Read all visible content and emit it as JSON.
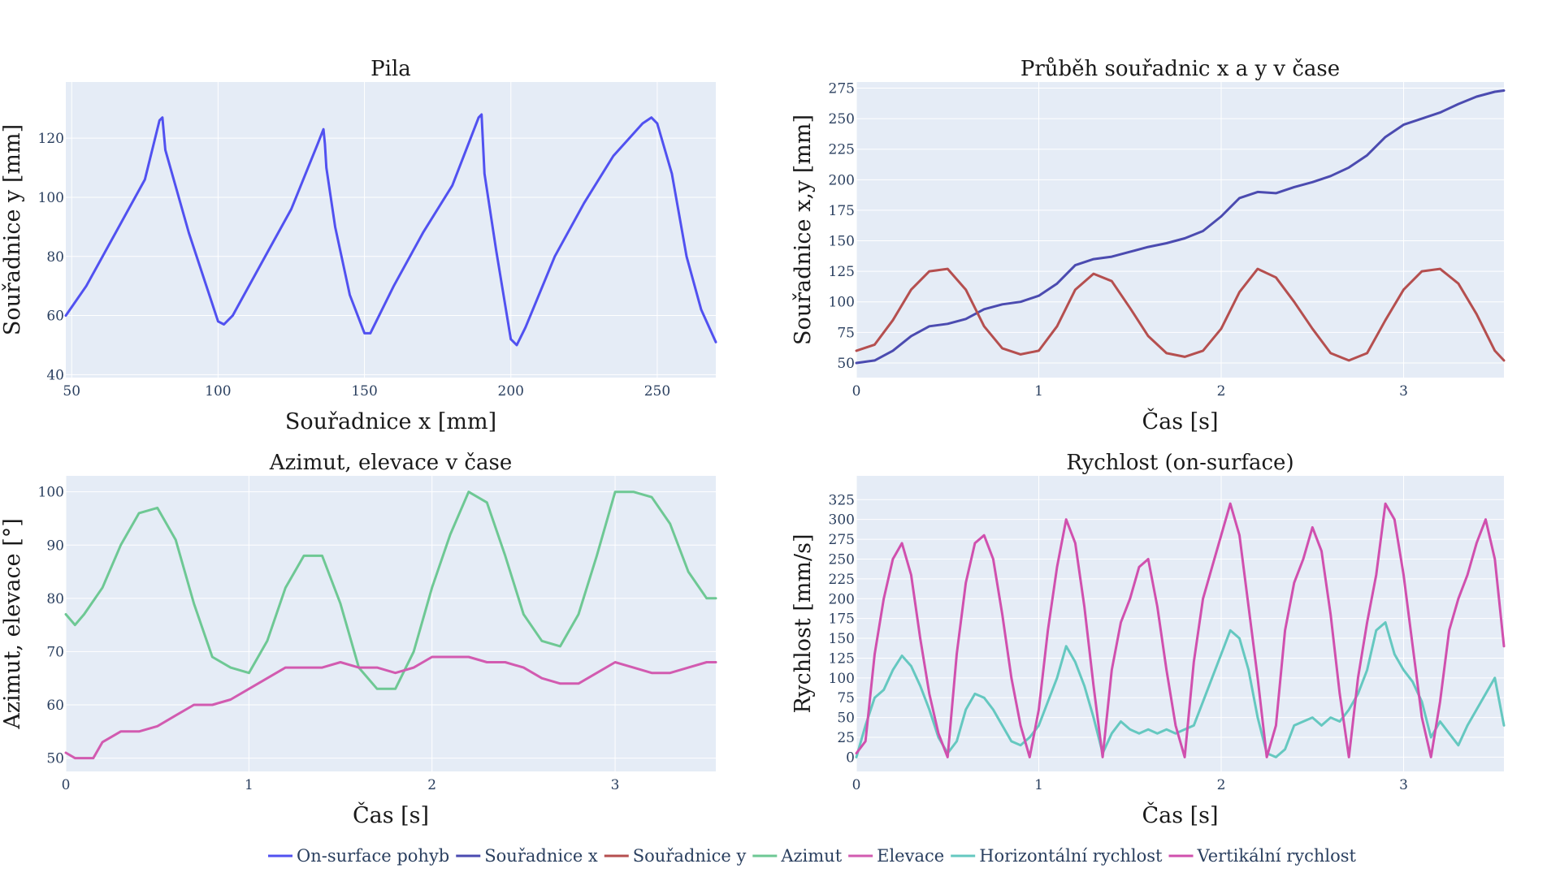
{
  "legend": [
    {
      "name": "On-surface pohyb",
      "color": "#5151f0"
    },
    {
      "name": "Souřadnice x",
      "color": "#4b4bb0"
    },
    {
      "name": "Souřadnice y",
      "color": "#b54f4f"
    },
    {
      "name": "Azimut",
      "color": "#6ec894"
    },
    {
      "name": "Elevace",
      "color": "#d25bb0"
    },
    {
      "name": "Horizontální rychlost",
      "color": "#65c8c0"
    },
    {
      "name": "Vertikální rychlost",
      "color": "#d050ae"
    }
  ],
  "chart_data": [
    {
      "type": "line",
      "title": "Pila",
      "xlabel": "Souřadnice x [mm]",
      "ylabel": "Souřadnice y [mm]",
      "xlim": [
        48,
        270
      ],
      "ylim": [
        39,
        139
      ],
      "xticks": [
        50,
        100,
        150,
        200,
        250
      ],
      "yticks": [
        40,
        60,
        80,
        100,
        120
      ],
      "plot_bg": "#e5ecf6",
      "series": [
        {
          "legend": "On-surface pohyb",
          "color": "#5151f0",
          "x": [
            48,
            55,
            65,
            75,
            80,
            81,
            82,
            90,
            100,
            102,
            105,
            115,
            125,
            134,
            136,
            136.5,
            137,
            140,
            145,
            150,
            152,
            160,
            170,
            180,
            189,
            190,
            190.5,
            191,
            195,
            200,
            202,
            205,
            215,
            225,
            235,
            245,
            248,
            250,
            255,
            260,
            265,
            270
          ],
          "y": [
            60,
            70,
            88,
            106,
            126,
            127,
            116,
            88,
            58,
            57,
            60,
            78,
            96,
            118,
            123,
            118,
            110,
            90,
            67,
            54,
            54,
            70,
            88,
            104,
            127,
            128,
            118,
            108,
            82,
            52,
            50,
            56,
            80,
            98,
            114,
            125,
            127,
            125,
            108,
            80,
            62,
            51
          ]
        }
      ]
    },
    {
      "type": "line",
      "title": "Průběh souřadnic x a y v čase",
      "xlabel": "Čas [s]",
      "ylabel": "Souřadnice x,y [mm]",
      "xlim": [
        0,
        3.55
      ],
      "ylim": [
        38,
        280
      ],
      "xticks": [
        0,
        1,
        2,
        3
      ],
      "yticks": [
        50,
        75,
        100,
        125,
        150,
        175,
        200,
        225,
        250,
        275
      ],
      "plot_bg": "#e5ecf6",
      "series": [
        {
          "legend": "Souřadnice x",
          "color": "#4b4bb0",
          "x": [
            0,
            0.1,
            0.2,
            0.3,
            0.4,
            0.5,
            0.6,
            0.7,
            0.8,
            0.9,
            1.0,
            1.1,
            1.2,
            1.3,
            1.4,
            1.5,
            1.6,
            1.7,
            1.8,
            1.9,
            2.0,
            2.1,
            2.2,
            2.3,
            2.4,
            2.5,
            2.6,
            2.7,
            2.8,
            2.9,
            3.0,
            3.1,
            3.2,
            3.3,
            3.4,
            3.5,
            3.55
          ],
          "y": [
            50,
            52,
            60,
            72,
            80,
            82,
            86,
            94,
            98,
            100,
            105,
            115,
            130,
            135,
            137,
            141,
            145,
            148,
            152,
            158,
            170,
            185,
            190,
            189,
            194,
            198,
            203,
            210,
            220,
            235,
            245,
            250,
            255,
            262,
            268,
            272,
            273
          ]
        },
        {
          "legend": "Souřadnice y",
          "color": "#b54f4f",
          "x": [
            0,
            0.1,
            0.2,
            0.3,
            0.4,
            0.5,
            0.6,
            0.7,
            0.8,
            0.9,
            1.0,
            1.1,
            1.2,
            1.3,
            1.4,
            1.5,
            1.6,
            1.7,
            1.8,
            1.9,
            2.0,
            2.1,
            2.2,
            2.3,
            2.4,
            2.5,
            2.6,
            2.7,
            2.8,
            2.9,
            3.0,
            3.1,
            3.2,
            3.3,
            3.4,
            3.5,
            3.55
          ],
          "y": [
            60,
            65,
            85,
            110,
            125,
            127,
            110,
            80,
            62,
            57,
            60,
            80,
            110,
            123,
            117,
            95,
            72,
            58,
            55,
            60,
            78,
            108,
            127,
            120,
            100,
            78,
            58,
            52,
            58,
            85,
            110,
            125,
            127,
            115,
            90,
            60,
            52
          ]
        }
      ]
    },
    {
      "type": "line",
      "title": "Azimut, elevace v čase",
      "xlabel": "Čas [s]",
      "ylabel": "Azimut, elevace [°]",
      "xlim": [
        0,
        3.55
      ],
      "ylim": [
        47.5,
        103
      ],
      "xticks": [
        0,
        1,
        2,
        3
      ],
      "yticks": [
        50,
        60,
        70,
        80,
        90,
        100
      ],
      "plot_bg": "#e5ecf6",
      "series": [
        {
          "legend": "Azimut",
          "color": "#6ec894",
          "x": [
            0,
            0.05,
            0.1,
            0.2,
            0.3,
            0.4,
            0.5,
            0.6,
            0.7,
            0.8,
            0.9,
            1.0,
            1.1,
            1.2,
            1.3,
            1.4,
            1.5,
            1.6,
            1.7,
            1.8,
            1.9,
            2.0,
            2.1,
            2.2,
            2.3,
            2.4,
            2.5,
            2.6,
            2.7,
            2.8,
            2.9,
            3.0,
            3.1,
            3.2,
            3.3,
            3.4,
            3.5,
            3.55
          ],
          "y": [
            77,
            75,
            77,
            82,
            90,
            96,
            97,
            91,
            79,
            69,
            67,
            66,
            72,
            82,
            88,
            88,
            79,
            67,
            63,
            63,
            70,
            82,
            92,
            100,
            98,
            88,
            77,
            72,
            71,
            77,
            88,
            100,
            100,
            99,
            94,
            85,
            80,
            80
          ]
        },
        {
          "legend": "Elevace",
          "color": "#d25bb0",
          "x": [
            0,
            0.05,
            0.15,
            0.2,
            0.3,
            0.4,
            0.5,
            0.6,
            0.7,
            0.8,
            0.9,
            1.0,
            1.1,
            1.2,
            1.3,
            1.4,
            1.5,
            1.6,
            1.7,
            1.8,
            1.9,
            2.0,
            2.1,
            2.2,
            2.3,
            2.4,
            2.5,
            2.6,
            2.7,
            2.8,
            2.9,
            3.0,
            3.1,
            3.2,
            3.3,
            3.4,
            3.5,
            3.55
          ],
          "y": [
            51,
            50,
            50,
            53,
            55,
            55,
            56,
            58,
            60,
            60,
            61,
            63,
            65,
            67,
            67,
            67,
            68,
            67,
            67,
            66,
            67,
            69,
            69,
            69,
            68,
            68,
            67,
            65,
            64,
            64,
            66,
            68,
            67,
            66,
            66,
            67,
            68,
            68
          ]
        }
      ]
    },
    {
      "type": "line",
      "title": "Rychlost (on-surface)",
      "xlabel": "Čas [s]",
      "ylabel": "Rychlost [mm/s]",
      "xlim": [
        0,
        3.55
      ],
      "ylim": [
        -18,
        355
      ],
      "xticks": [
        0,
        1,
        2,
        3
      ],
      "yticks": [
        0,
        25,
        50,
        75,
        100,
        125,
        150,
        175,
        200,
        225,
        250,
        275,
        300,
        325
      ],
      "plot_bg": "#e5ecf6",
      "series": [
        {
          "legend": "Horizontální rychlost",
          "color": "#65c8c0",
          "x": [
            0,
            0.05,
            0.1,
            0.15,
            0.2,
            0.25,
            0.3,
            0.35,
            0.4,
            0.45,
            0.5,
            0.55,
            0.6,
            0.65,
            0.7,
            0.75,
            0.8,
            0.85,
            0.9,
            0.95,
            1.0,
            1.05,
            1.1,
            1.15,
            1.2,
            1.25,
            1.3,
            1.35,
            1.4,
            1.45,
            1.5,
            1.55,
            1.6,
            1.65,
            1.7,
            1.75,
            1.8,
            1.85,
            1.9,
            1.95,
            2.0,
            2.05,
            2.1,
            2.15,
            2.2,
            2.25,
            2.3,
            2.35,
            2.4,
            2.45,
            2.5,
            2.55,
            2.6,
            2.65,
            2.7,
            2.75,
            2.8,
            2.85,
            2.9,
            2.95,
            3.0,
            3.05,
            3.1,
            3.15,
            3.2,
            3.25,
            3.3,
            3.35,
            3.4,
            3.45,
            3.5,
            3.55
          ],
          "y": [
            0,
            40,
            75,
            85,
            110,
            128,
            115,
            90,
            60,
            25,
            5,
            20,
            60,
            80,
            75,
            60,
            40,
            20,
            15,
            25,
            40,
            70,
            100,
            140,
            120,
            90,
            50,
            5,
            30,
            45,
            35,
            30,
            35,
            30,
            35,
            30,
            35,
            40,
            70,
            100,
            130,
            160,
            150,
            110,
            50,
            5,
            0,
            10,
            40,
            45,
            50,
            40,
            50,
            45,
            60,
            80,
            110,
            160,
            170,
            130,
            110,
            95,
            70,
            25,
            45,
            30,
            15,
            40,
            60,
            80,
            100,
            40
          ]
        },
        {
          "legend": "Vertikální rychlost",
          "color": "#d050ae",
          "x": [
            0,
            0.05,
            0.1,
            0.15,
            0.2,
            0.25,
            0.3,
            0.35,
            0.4,
            0.45,
            0.5,
            0.55,
            0.6,
            0.65,
            0.7,
            0.75,
            0.8,
            0.85,
            0.9,
            0.95,
            1.0,
            1.05,
            1.1,
            1.15,
            1.2,
            1.25,
            1.3,
            1.35,
            1.4,
            1.45,
            1.5,
            1.55,
            1.6,
            1.65,
            1.7,
            1.75,
            1.8,
            1.85,
            1.9,
            1.95,
            2.0,
            2.05,
            2.1,
            2.15,
            2.2,
            2.25,
            2.3,
            2.35,
            2.4,
            2.45,
            2.5,
            2.55,
            2.6,
            2.65,
            2.7,
            2.75,
            2.8,
            2.85,
            2.9,
            2.95,
            3.0,
            3.05,
            3.1,
            3.15,
            3.2,
            3.25,
            3.3,
            3.35,
            3.4,
            3.45,
            3.5,
            3.55
          ],
          "y": [
            5,
            20,
            130,
            200,
            250,
            270,
            230,
            150,
            80,
            30,
            0,
            130,
            220,
            270,
            280,
            250,
            180,
            100,
            40,
            0,
            60,
            160,
            240,
            300,
            270,
            190,
            90,
            0,
            110,
            170,
            200,
            240,
            250,
            190,
            110,
            40,
            0,
            120,
            200,
            240,
            280,
            320,
            280,
            190,
            100,
            0,
            40,
            160,
            220,
            250,
            290,
            260,
            180,
            80,
            0,
            100,
            170,
            230,
            320,
            300,
            230,
            140,
            50,
            0,
            70,
            160,
            200,
            230,
            270,
            300,
            250,
            140
          ]
        }
      ]
    }
  ]
}
